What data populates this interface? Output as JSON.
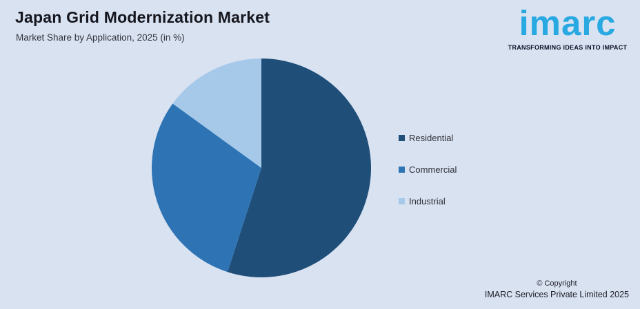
{
  "header": {
    "title": "Japan Grid Modernization Market",
    "subtitle": "Market Share by Application, 2025 (in %)"
  },
  "logo": {
    "wordmark": "imarc",
    "tagline": "TRANSFORMING IDEAS INTO IMPACT",
    "brand_color": "#29A9E1",
    "tagline_color": "#0C1028"
  },
  "chart_data": {
    "type": "pie",
    "title": "Japan Grid Modernization Market",
    "subtitle": "Market Share by Application, 2025 (in %)",
    "categories": [
      "Residential",
      "Commercial",
      "Industrial"
    ],
    "values": [
      55,
      30,
      15
    ],
    "unit": "%",
    "colors": [
      "#1F4E79",
      "#2E74B5",
      "#A6C9EA"
    ],
    "start_angle_deg": 0,
    "direction": "clockwise",
    "legend_position": "right",
    "data_labels": false
  },
  "footer": {
    "copyright_line1": "© Copyright",
    "copyright_line2": "IMARC Services Private Limited 2025"
  },
  "colors": {
    "background": "#D9E2F1",
    "title_text": "#15161E",
    "subtitle_text": "#33343C",
    "legend_text": "#2F3038",
    "footer_text": "#1C1D26"
  }
}
